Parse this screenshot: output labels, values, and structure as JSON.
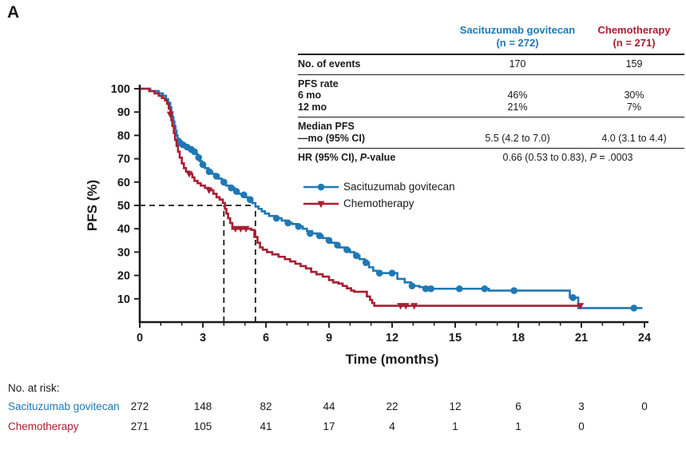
{
  "panel_label": "A",
  "colors": {
    "sg": "#1f78b5",
    "chemo": "#a81e32",
    "axis": "#1a1a1a",
    "background": "#ffffff"
  },
  "stats_table": {
    "columns": [
      {
        "name": "Sacituzumab govitecan",
        "n_label": "(n = 272)"
      },
      {
        "name": "Chemotherapy",
        "n_label": "(n = 271)"
      }
    ],
    "events": {
      "label": "No. of events",
      "values": [
        "170",
        "159"
      ]
    },
    "pfs_rate": {
      "label": "PFS rate",
      "rows": [
        {
          "label": "6 mo",
          "values": [
            "46%",
            "30%"
          ]
        },
        {
          "label": "12 mo",
          "values": [
            "21%",
            "7%"
          ]
        }
      ]
    },
    "median": {
      "label": "Median PFS",
      "sub_label": "—mo (95% CI)",
      "values": [
        "5.5 (4.2 to 7.0)",
        "4.0 (3.1 to 4.4)"
      ]
    },
    "hr": {
      "label_pre": "HR (95% CI), ",
      "label_italic": "P",
      "label_post": "-value",
      "value_pre": "0.66 (0.53 to 0.83), ",
      "value_italic": "P",
      "value_post": " = .0003"
    }
  },
  "chart_data": {
    "type": "line",
    "subtype": "kaplan-meier-step",
    "title": "",
    "xlabel": "Time (months)",
    "ylabel": "PFS (%)",
    "xlim": [
      0,
      24
    ],
    "ylim": [
      0,
      100
    ],
    "xticks": [
      0,
      3,
      6,
      9,
      12,
      15,
      18,
      21,
      24
    ],
    "x_minor_step": 1,
    "yticks": [
      10,
      20,
      30,
      40,
      50,
      60,
      70,
      80,
      90,
      100
    ],
    "grid": false,
    "median_reference": {
      "y_percent": 50,
      "x_months": [
        4.0,
        5.5
      ]
    },
    "series": [
      {
        "name": "Sacituzumab govitecan",
        "color": "#1f78b5",
        "marker": "circle",
        "median_months": 5.5,
        "steps": [
          [
            0,
            100
          ],
          [
            0.5,
            99
          ],
          [
            0.9,
            98
          ],
          [
            1.1,
            97
          ],
          [
            1.25,
            95.5
          ],
          [
            1.35,
            94
          ],
          [
            1.45,
            92
          ],
          [
            1.5,
            90
          ],
          [
            1.55,
            88
          ],
          [
            1.6,
            86
          ],
          [
            1.65,
            84
          ],
          [
            1.7,
            82
          ],
          [
            1.75,
            80
          ],
          [
            1.8,
            78.5
          ],
          [
            1.9,
            77
          ],
          [
            2.0,
            76
          ],
          [
            2.2,
            75
          ],
          [
            2.4,
            74
          ],
          [
            2.55,
            73
          ],
          [
            2.65,
            72
          ],
          [
            2.75,
            70.5
          ],
          [
            2.85,
            69
          ],
          [
            2.95,
            67.5
          ],
          [
            3.1,
            66
          ],
          [
            3.25,
            64.5
          ],
          [
            3.45,
            63.5
          ],
          [
            3.6,
            62.5
          ],
          [
            3.75,
            61.5
          ],
          [
            3.9,
            60
          ],
          [
            4.1,
            58.5
          ],
          [
            4.3,
            57.5
          ],
          [
            4.5,
            56
          ],
          [
            4.7,
            55
          ],
          [
            4.9,
            54.5
          ],
          [
            5.05,
            53.5
          ],
          [
            5.2,
            52.5
          ],
          [
            5.35,
            51
          ],
          [
            5.5,
            49.5
          ],
          [
            5.65,
            48.5
          ],
          [
            5.8,
            47.5
          ],
          [
            5.95,
            46.5
          ],
          [
            6.15,
            45.5
          ],
          [
            6.45,
            44.5
          ],
          [
            6.75,
            43.5
          ],
          [
            7.0,
            42.5
          ],
          [
            7.25,
            42
          ],
          [
            7.5,
            41
          ],
          [
            7.75,
            40
          ],
          [
            7.95,
            39
          ],
          [
            8.2,
            38
          ],
          [
            8.45,
            37
          ],
          [
            8.7,
            36
          ],
          [
            8.9,
            35
          ],
          [
            9.1,
            34
          ],
          [
            9.3,
            33
          ],
          [
            9.5,
            32
          ],
          [
            9.75,
            31
          ],
          [
            10.0,
            30
          ],
          [
            10.2,
            28.5
          ],
          [
            10.45,
            27
          ],
          [
            10.7,
            25.5
          ],
          [
            10.9,
            23.5
          ],
          [
            11.1,
            22
          ],
          [
            11.3,
            21
          ],
          [
            12.25,
            18.5
          ],
          [
            12.6,
            17
          ],
          [
            12.9,
            15.5
          ],
          [
            13.3,
            15
          ],
          [
            13.9,
            14.3
          ],
          [
            16.6,
            13.5
          ],
          [
            20.45,
            10.5
          ],
          [
            20.85,
            6
          ],
          [
            23.9,
            6
          ]
        ],
        "censor_marks": [
          [
            1.9,
            77
          ],
          [
            2.05,
            76
          ],
          [
            2.25,
            75
          ],
          [
            2.45,
            74
          ],
          [
            2.6,
            73
          ],
          [
            2.8,
            70.5
          ],
          [
            3.0,
            67.5
          ],
          [
            3.3,
            64.5
          ],
          [
            3.65,
            62.5
          ],
          [
            4.0,
            60
          ],
          [
            4.35,
            57.5
          ],
          [
            4.6,
            56
          ],
          [
            4.95,
            54.5
          ],
          [
            5.25,
            52.5
          ],
          [
            6.5,
            44.5
          ],
          [
            7.05,
            42.5
          ],
          [
            7.55,
            41
          ],
          [
            8.1,
            38
          ],
          [
            8.55,
            37
          ],
          [
            9.0,
            35
          ],
          [
            9.4,
            33
          ],
          [
            9.85,
            31
          ],
          [
            10.3,
            28.5
          ],
          [
            10.75,
            25.5
          ],
          [
            11.4,
            21
          ],
          [
            12.0,
            21
          ],
          [
            12.95,
            15.5
          ],
          [
            13.6,
            14.3
          ],
          [
            13.85,
            14.3
          ],
          [
            15.2,
            14.3
          ],
          [
            16.4,
            14.3
          ],
          [
            17.8,
            13.5
          ],
          [
            20.6,
            10.5
          ],
          [
            23.5,
            6
          ]
        ]
      },
      {
        "name": "Chemotherapy",
        "color": "#a81e32",
        "marker": "triangle-down",
        "median_months": 4.0,
        "steps": [
          [
            0,
            100
          ],
          [
            0.45,
            99
          ],
          [
            0.7,
            98
          ],
          [
            0.9,
            97
          ],
          [
            1.05,
            96
          ],
          [
            1.2,
            95
          ],
          [
            1.3,
            93.5
          ],
          [
            1.38,
            91.5
          ],
          [
            1.45,
            89
          ],
          [
            1.5,
            86.5
          ],
          [
            1.55,
            84
          ],
          [
            1.62,
            81
          ],
          [
            1.68,
            78
          ],
          [
            1.75,
            75.5
          ],
          [
            1.82,
            73
          ],
          [
            1.9,
            70.5
          ],
          [
            2.0,
            68
          ],
          [
            2.1,
            66
          ],
          [
            2.2,
            64.5
          ],
          [
            2.35,
            63.5
          ],
          [
            2.5,
            62
          ],
          [
            2.6,
            60.5
          ],
          [
            2.75,
            59.5
          ],
          [
            2.9,
            58.5
          ],
          [
            3.1,
            57.5
          ],
          [
            3.3,
            56.5
          ],
          [
            3.5,
            55
          ],
          [
            3.65,
            53.5
          ],
          [
            3.8,
            52.5
          ],
          [
            3.95,
            51
          ],
          [
            4.05,
            48.5
          ],
          [
            4.12,
            46.5
          ],
          [
            4.2,
            44.5
          ],
          [
            4.3,
            42.5
          ],
          [
            4.4,
            40
          ],
          [
            5.3,
            39.5
          ],
          [
            5.45,
            36.5
          ],
          [
            5.6,
            34
          ],
          [
            5.72,
            32
          ],
          [
            5.85,
            31
          ],
          [
            6.05,
            30
          ],
          [
            6.3,
            29
          ],
          [
            6.6,
            28
          ],
          [
            6.9,
            27
          ],
          [
            7.15,
            26
          ],
          [
            7.4,
            25
          ],
          [
            7.65,
            24
          ],
          [
            7.9,
            23
          ],
          [
            8.15,
            21.5
          ],
          [
            8.4,
            20.5
          ],
          [
            8.7,
            19.5
          ],
          [
            9.0,
            18
          ],
          [
            9.2,
            17
          ],
          [
            9.45,
            16.5
          ],
          [
            9.65,
            15.5
          ],
          [
            9.85,
            14.5
          ],
          [
            10.05,
            13.5
          ],
          [
            10.2,
            13
          ],
          [
            10.8,
            11
          ],
          [
            10.95,
            9.5
          ],
          [
            11.05,
            8.2
          ],
          [
            11.15,
            7
          ],
          [
            21.0,
            7
          ]
        ],
        "censor_marks": [
          [
            1.45,
            89
          ],
          [
            2.35,
            63.5
          ],
          [
            3.3,
            56.5
          ],
          [
            4.55,
            40
          ],
          [
            4.8,
            40
          ],
          [
            5.05,
            40
          ],
          [
            12.4,
            7
          ],
          [
            12.65,
            7
          ],
          [
            13.05,
            7
          ],
          [
            20.95,
            7
          ]
        ]
      }
    ]
  },
  "risk_table": {
    "title": "No. at risk:",
    "time_points": [
      0,
      3,
      6,
      9,
      12,
      15,
      18,
      21,
      24
    ],
    "rows": [
      {
        "label": "Sacituzumab govitecan",
        "values": [
          "272",
          "148",
          "82",
          "44",
          "22",
          "12",
          "6",
          "3",
          "0"
        ]
      },
      {
        "label": "Chemotherapy",
        "values": [
          "271",
          "105",
          "41",
          "17",
          "4",
          "1",
          "1",
          "0"
        ]
      }
    ]
  }
}
